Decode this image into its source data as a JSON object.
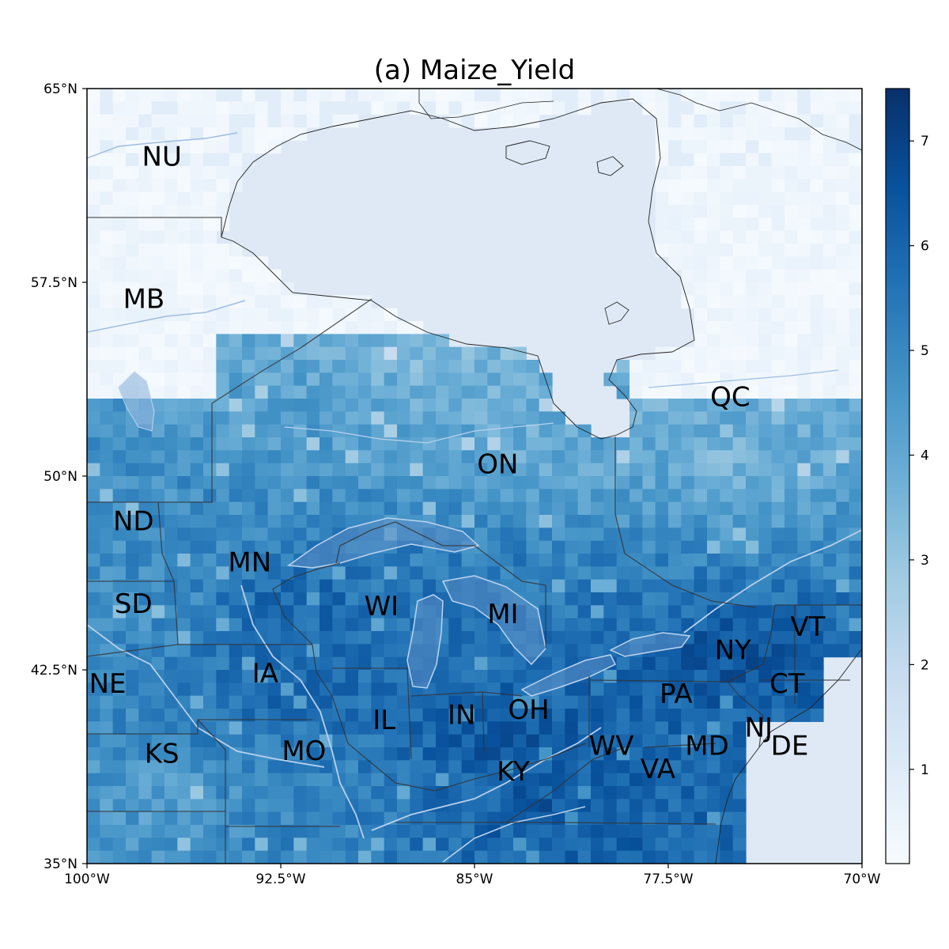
{
  "title": "(a) Maize_Yield",
  "map": {
    "lon_range": [
      -100,
      -70
    ],
    "lat_range": [
      35,
      65
    ],
    "x_ticks": [
      {
        "lon": -100,
        "label": "100°W"
      },
      {
        "lon": -92.5,
        "label": "92.5°W"
      },
      {
        "lon": -85,
        "label": "85°W"
      },
      {
        "lon": -77.5,
        "label": "77.5°W"
      },
      {
        "lon": -70,
        "label": "70°W"
      }
    ],
    "y_ticks": [
      {
        "lat": 65,
        "label": "65°N"
      },
      {
        "lat": 57.5,
        "label": "57.5°N"
      },
      {
        "lat": 50,
        "label": "50°N"
      },
      {
        "lat": 42.5,
        "label": "42.5°N"
      },
      {
        "lat": 35,
        "label": "35°N"
      }
    ],
    "region_labels": [
      {
        "text": "NU",
        "lon": -97.1,
        "lat": 62.3
      },
      {
        "text": "MB",
        "lon": -97.8,
        "lat": 56.8
      },
      {
        "text": "QC",
        "lon": -75.1,
        "lat": 53.0
      },
      {
        "text": "ON",
        "lon": -84.1,
        "lat": 50.4
      },
      {
        "text": "ND",
        "lon": -98.2,
        "lat": 48.2
      },
      {
        "text": "MN",
        "lon": -93.7,
        "lat": 46.6
      },
      {
        "text": "SD",
        "lon": -98.2,
        "lat": 45.0
      },
      {
        "text": "WI",
        "lon": -88.6,
        "lat": 44.9
      },
      {
        "text": "MI",
        "lon": -83.9,
        "lat": 44.6
      },
      {
        "text": "VT",
        "lon": -72.1,
        "lat": 44.1
      },
      {
        "text": "NY",
        "lon": -75.0,
        "lat": 43.2
      },
      {
        "text": "IA",
        "lon": -93.1,
        "lat": 42.3
      },
      {
        "text": "NE",
        "lon": -99.2,
        "lat": 41.9
      },
      {
        "text": "CT",
        "lon": -72.9,
        "lat": 41.9
      },
      {
        "text": "PA",
        "lon": -77.2,
        "lat": 41.5
      },
      {
        "text": "OH",
        "lon": -82.9,
        "lat": 40.9
      },
      {
        "text": "IN",
        "lon": -85.5,
        "lat": 40.7
      },
      {
        "text": "IL",
        "lon": -88.5,
        "lat": 40.5
      },
      {
        "text": "NJ",
        "lon": -74.0,
        "lat": 40.2
      },
      {
        "text": "WV",
        "lon": -79.7,
        "lat": 39.5
      },
      {
        "text": "MD",
        "lon": -76.0,
        "lat": 39.5
      },
      {
        "text": "DE",
        "lon": -72.8,
        "lat": 39.5
      },
      {
        "text": "MO",
        "lon": -91.6,
        "lat": 39.3
      },
      {
        "text": "KS",
        "lon": -97.1,
        "lat": 39.2
      },
      {
        "text": "VA",
        "lon": -77.9,
        "lat": 38.6
      },
      {
        "text": "KY",
        "lon": -83.5,
        "lat": 38.5
      }
    ]
  },
  "colorbar": {
    "colormap": "Blues",
    "min": 0.1,
    "max": 7.5,
    "ticks": [
      {
        "value": 1,
        "label": "1"
      },
      {
        "value": 2,
        "label": "2"
      },
      {
        "value": 3,
        "label": "3"
      },
      {
        "value": 4,
        "label": "4"
      },
      {
        "value": 5,
        "label": "5"
      },
      {
        "value": 6,
        "label": "6"
      },
      {
        "value": 7,
        "label": "7"
      }
    ]
  },
  "colors": {
    "ocean_fill": "#dee9f5",
    "low_fill": "#f4f9fe",
    "state_border": "#333333",
    "coast_line": "#222222",
    "river_line": "#9dbde3",
    "lake_fill": "#5d8fc7"
  },
  "chart_data": {
    "type": "heatmap",
    "title": "(a) Maize_Yield",
    "variable": "Maize_Yield",
    "xlim": [
      -100,
      -70
    ],
    "ylim": [
      35,
      65
    ],
    "clim": [
      0.1,
      7.5
    ],
    "colormap": "Blues",
    "zones": [
      {
        "lat_min": 55,
        "lat_max": 65,
        "lon_min": -100,
        "lon_max": -70,
        "value": 0.3
      },
      {
        "lat_min": 53,
        "lat_max": 56.5,
        "lon_min": -90,
        "lon_max": -84,
        "value": 3.2
      },
      {
        "lat_min": 51,
        "lat_max": 55,
        "lon_min": -95,
        "lon_max": -86,
        "value": 4.3
      },
      {
        "lat_min": 50,
        "lat_max": 53,
        "lon_min": -86,
        "lon_max": -80,
        "value": 3.9
      },
      {
        "lat_min": 49,
        "lat_max": 53,
        "lon_min": -80,
        "lon_max": -70,
        "value": 3.6
      },
      {
        "lat_min": 47,
        "lat_max": 50,
        "lon_min": -100,
        "lon_max": -93,
        "value": 4.8
      },
      {
        "lat_min": 43,
        "lat_max": 47,
        "lon_min": -100,
        "lon_max": -96,
        "value": 4.6
      },
      {
        "lat_min": 43,
        "lat_max": 47,
        "lon_min": -96,
        "lon_max": -88,
        "value": 6.2
      },
      {
        "lat_min": 43,
        "lat_max": 47,
        "lon_min": -88,
        "lon_max": -82,
        "value": 5.6
      },
      {
        "lat_min": 41,
        "lat_max": 45,
        "lon_min": -78,
        "lon_max": -72,
        "value": 6.6
      },
      {
        "lat_min": 40,
        "lat_max": 43.5,
        "lon_min": -96,
        "lon_max": -88,
        "value": 6.0
      },
      {
        "lat_min": 38,
        "lat_max": 42,
        "lon_min": -88,
        "lon_max": -80,
        "value": 6.6
      },
      {
        "lat_min": 35,
        "lat_max": 40,
        "lon_min": -100,
        "lon_max": -94,
        "value": 4.2
      },
      {
        "lat_min": 35,
        "lat_max": 40,
        "lon_min": -94,
        "lon_max": -88,
        "value": 5.0
      },
      {
        "lat_min": 35,
        "lat_max": 39,
        "lon_min": -88,
        "lon_max": -76,
        "value": 6.4
      }
    ]
  }
}
